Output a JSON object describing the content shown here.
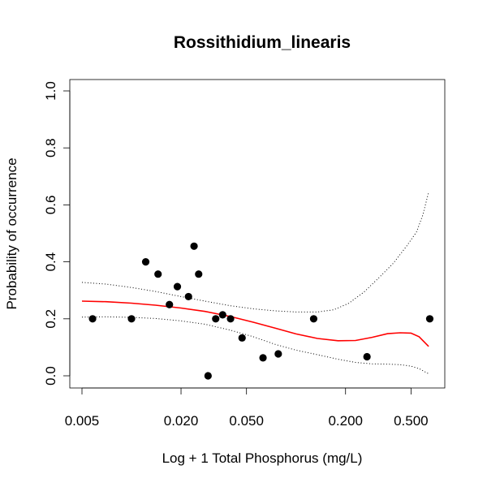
{
  "chart_data": {
    "type": "scatter",
    "title": "Rossithidium_linearis",
    "xlabel": "Log + 1 Total Phosphorus (mg/L)",
    "ylabel": "Probability of occurrence",
    "x_scale": "log",
    "xlim": [
      0.005,
      0.7
    ],
    "ylim": [
      0,
      1
    ],
    "x_ticks": [
      0.005,
      0.02,
      0.05,
      0.2,
      0.5
    ],
    "x_tick_labels": [
      "0.005",
      "0.020",
      "0.050",
      "0.200",
      "0.500"
    ],
    "y_ticks": [
      0,
      0.2,
      0.4,
      0.6,
      0.8,
      1.0
    ],
    "y_tick_labels": [
      "0.0",
      "0.2",
      "0.4",
      "0.6",
      "0.8",
      "1.0"
    ],
    "grid": false,
    "colors": {
      "points": "#000000",
      "fit": "#ff0000",
      "ci": "#000000"
    },
    "points": [
      {
        "x": 0.0058,
        "y": 0.2
      },
      {
        "x": 0.01,
        "y": 0.2
      },
      {
        "x": 0.0122,
        "y": 0.4
      },
      {
        "x": 0.0145,
        "y": 0.357
      },
      {
        "x": 0.017,
        "y": 0.25
      },
      {
        "x": 0.019,
        "y": 0.313
      },
      {
        "x": 0.0222,
        "y": 0.278
      },
      {
        "x": 0.024,
        "y": 0.455
      },
      {
        "x": 0.0256,
        "y": 0.357
      },
      {
        "x": 0.0292,
        "y": 0.0
      },
      {
        "x": 0.0325,
        "y": 0.2
      },
      {
        "x": 0.0358,
        "y": 0.214
      },
      {
        "x": 0.04,
        "y": 0.2
      },
      {
        "x": 0.047,
        "y": 0.133
      },
      {
        "x": 0.063,
        "y": 0.063
      },
      {
        "x": 0.078,
        "y": 0.077
      },
      {
        "x": 0.128,
        "y": 0.2
      },
      {
        "x": 0.27,
        "y": 0.067
      },
      {
        "x": 0.65,
        "y": 0.2
      }
    ],
    "fit": {
      "x": [
        0.005,
        0.007,
        0.01,
        0.014,
        0.02,
        0.028,
        0.04,
        0.055,
        0.075,
        0.1,
        0.135,
        0.18,
        0.23,
        0.29,
        0.36,
        0.43,
        0.5,
        0.56,
        0.64
      ],
      "y": [
        0.262,
        0.26,
        0.255,
        0.248,
        0.238,
        0.226,
        0.208,
        0.188,
        0.167,
        0.147,
        0.131,
        0.123,
        0.124,
        0.135,
        0.148,
        0.151,
        0.15,
        0.137,
        0.103
      ]
    },
    "ci_upper": {
      "x": [
        0.005,
        0.007,
        0.01,
        0.014,
        0.02,
        0.028,
        0.04,
        0.055,
        0.075,
        0.1,
        0.135,
        0.17,
        0.21,
        0.26,
        0.32,
        0.39,
        0.47,
        0.54,
        0.59,
        0.64
      ],
      "y": [
        0.328,
        0.322,
        0.31,
        0.296,
        0.278,
        0.262,
        0.246,
        0.235,
        0.228,
        0.224,
        0.224,
        0.232,
        0.255,
        0.295,
        0.345,
        0.395,
        0.455,
        0.505,
        0.565,
        0.645
      ]
    },
    "ci_lower": {
      "x": [
        0.005,
        0.007,
        0.01,
        0.014,
        0.02,
        0.028,
        0.04,
        0.055,
        0.075,
        0.1,
        0.135,
        0.18,
        0.23,
        0.29,
        0.36,
        0.43,
        0.5,
        0.56,
        0.64
      ],
      "y": [
        0.206,
        0.207,
        0.205,
        0.201,
        0.193,
        0.181,
        0.16,
        0.137,
        0.11,
        0.09,
        0.074,
        0.058,
        0.047,
        0.042,
        0.041,
        0.039,
        0.034,
        0.025,
        0.007
      ]
    }
  }
}
